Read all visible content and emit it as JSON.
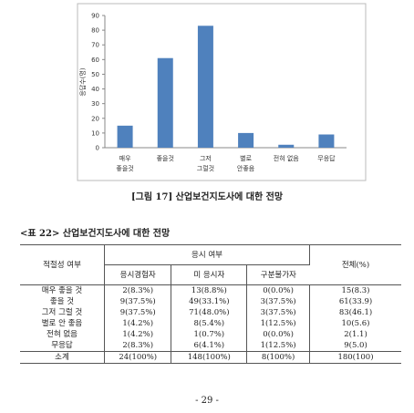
{
  "chart_data": {
    "type": "bar",
    "y_label": "응답수(명)",
    "categories": [
      [
        "매우",
        "좋을것"
      ],
      [
        "좋을것"
      ],
      [
        "그저",
        "그럴것"
      ],
      [
        "별로",
        "안좋음"
      ],
      [
        "전혀 없음"
      ],
      [
        "무응답"
      ]
    ],
    "values": [
      15,
      61,
      83,
      10,
      2,
      9
    ],
    "color": "#4f81bd",
    "ylim": [
      0,
      90
    ],
    "yticks": [
      0,
      10,
      20,
      30,
      40,
      50,
      60,
      70,
      80,
      90
    ],
    "grid": false
  },
  "figure_caption": "[그림 17]  산업보건지도사에 대한 전망",
  "table_title": "<표 22> 산업보건지도사에 대한 전망",
  "table": {
    "header": {
      "col0": "적절성 여부",
      "group": "응시 여부",
      "total": "전체(%)",
      "sub": [
        "응시경험자",
        "미 응시자",
        "구분불가자"
      ]
    },
    "rows": [
      [
        "매우 좋을 것",
        "2(8.3%)",
        "13(8.8%)",
        "0(0.0%)",
        "15(8.3)"
      ],
      [
        "좋을 것",
        "9(37.5%)",
        "49(33.1%)",
        "3(37.5%)",
        "61(33.9)"
      ],
      [
        "그저 그럴 것",
        "9(37.5%)",
        "71(48.0%)",
        "3(37.5%)",
        "83(46.1)"
      ],
      [
        "별로 안 좋음",
        "1(4.2%)",
        "8(5.4%)",
        "1(12.5%)",
        "10(5.6)"
      ],
      [
        "전혀 없음",
        "1(4.2%)",
        "1(0.7%)",
        "0(0.0%)",
        "2(1.1)"
      ],
      [
        "무응답",
        "2(8.3%)",
        "6(4.1%)",
        "1(12.5%)",
        "9(5.0)"
      ],
      [
        "소계",
        "24(100%)",
        "148(100%)",
        "8(100%)",
        "180(100)"
      ]
    ]
  },
  "page_number": "- 29 -"
}
